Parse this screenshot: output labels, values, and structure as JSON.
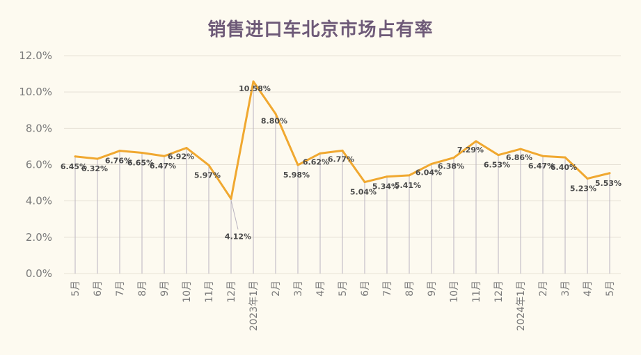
{
  "chart_data": {
    "type": "line",
    "title": "销售进口车北京市场占有率",
    "categories": [
      "5月",
      "6月",
      "7月",
      "8月",
      "9月",
      "10月",
      "11月",
      "12月",
      "2023年1月",
      "2月",
      "3月",
      "4月",
      "5月",
      "6月",
      "7月",
      "8月",
      "9月",
      "10月",
      "11月",
      "12月",
      "2024年1月",
      "2月",
      "3月",
      "4月",
      "5月"
    ],
    "series": [
      {
        "values": [
          6.45,
          6.32,
          6.76,
          6.65,
          6.47,
          6.92,
          5.97,
          4.12,
          10.58,
          8.8,
          5.98,
          6.62,
          6.77,
          5.04,
          5.34,
          5.41,
          6.04,
          6.38,
          7.29,
          6.53,
          6.86,
          6.47,
          6.4,
          5.23,
          5.53
        ],
        "labels": [
          "6.45%",
          "6.32%",
          "6.76%",
          "6.65%",
          "6.47%",
          "6.92%",
          "5.97%",
          "4.12%",
          "10.58%",
          "8.80%",
          "5.98%",
          "6.62%",
          "6.77%",
          "5.04%",
          "5.34%",
          "5.41%",
          "6.04%",
          "6.38%",
          "7.29%",
          "6.53%",
          "6.86%",
          "6.47%",
          "6.40%",
          "5.23%",
          "5.53%"
        ]
      }
    ],
    "yticks": [
      "0.0%",
      "2.0%",
      "4.0%",
      "6.0%",
      "8.0%",
      "10.0%",
      "12.0%"
    ],
    "ylim": [
      0,
      12
    ],
    "grid": true,
    "drop_lines": true,
    "colors": {
      "line": "#f0a830",
      "grid": "#e6e1d6",
      "drop": "#b9b3bf",
      "title": "#6e5a78"
    }
  }
}
